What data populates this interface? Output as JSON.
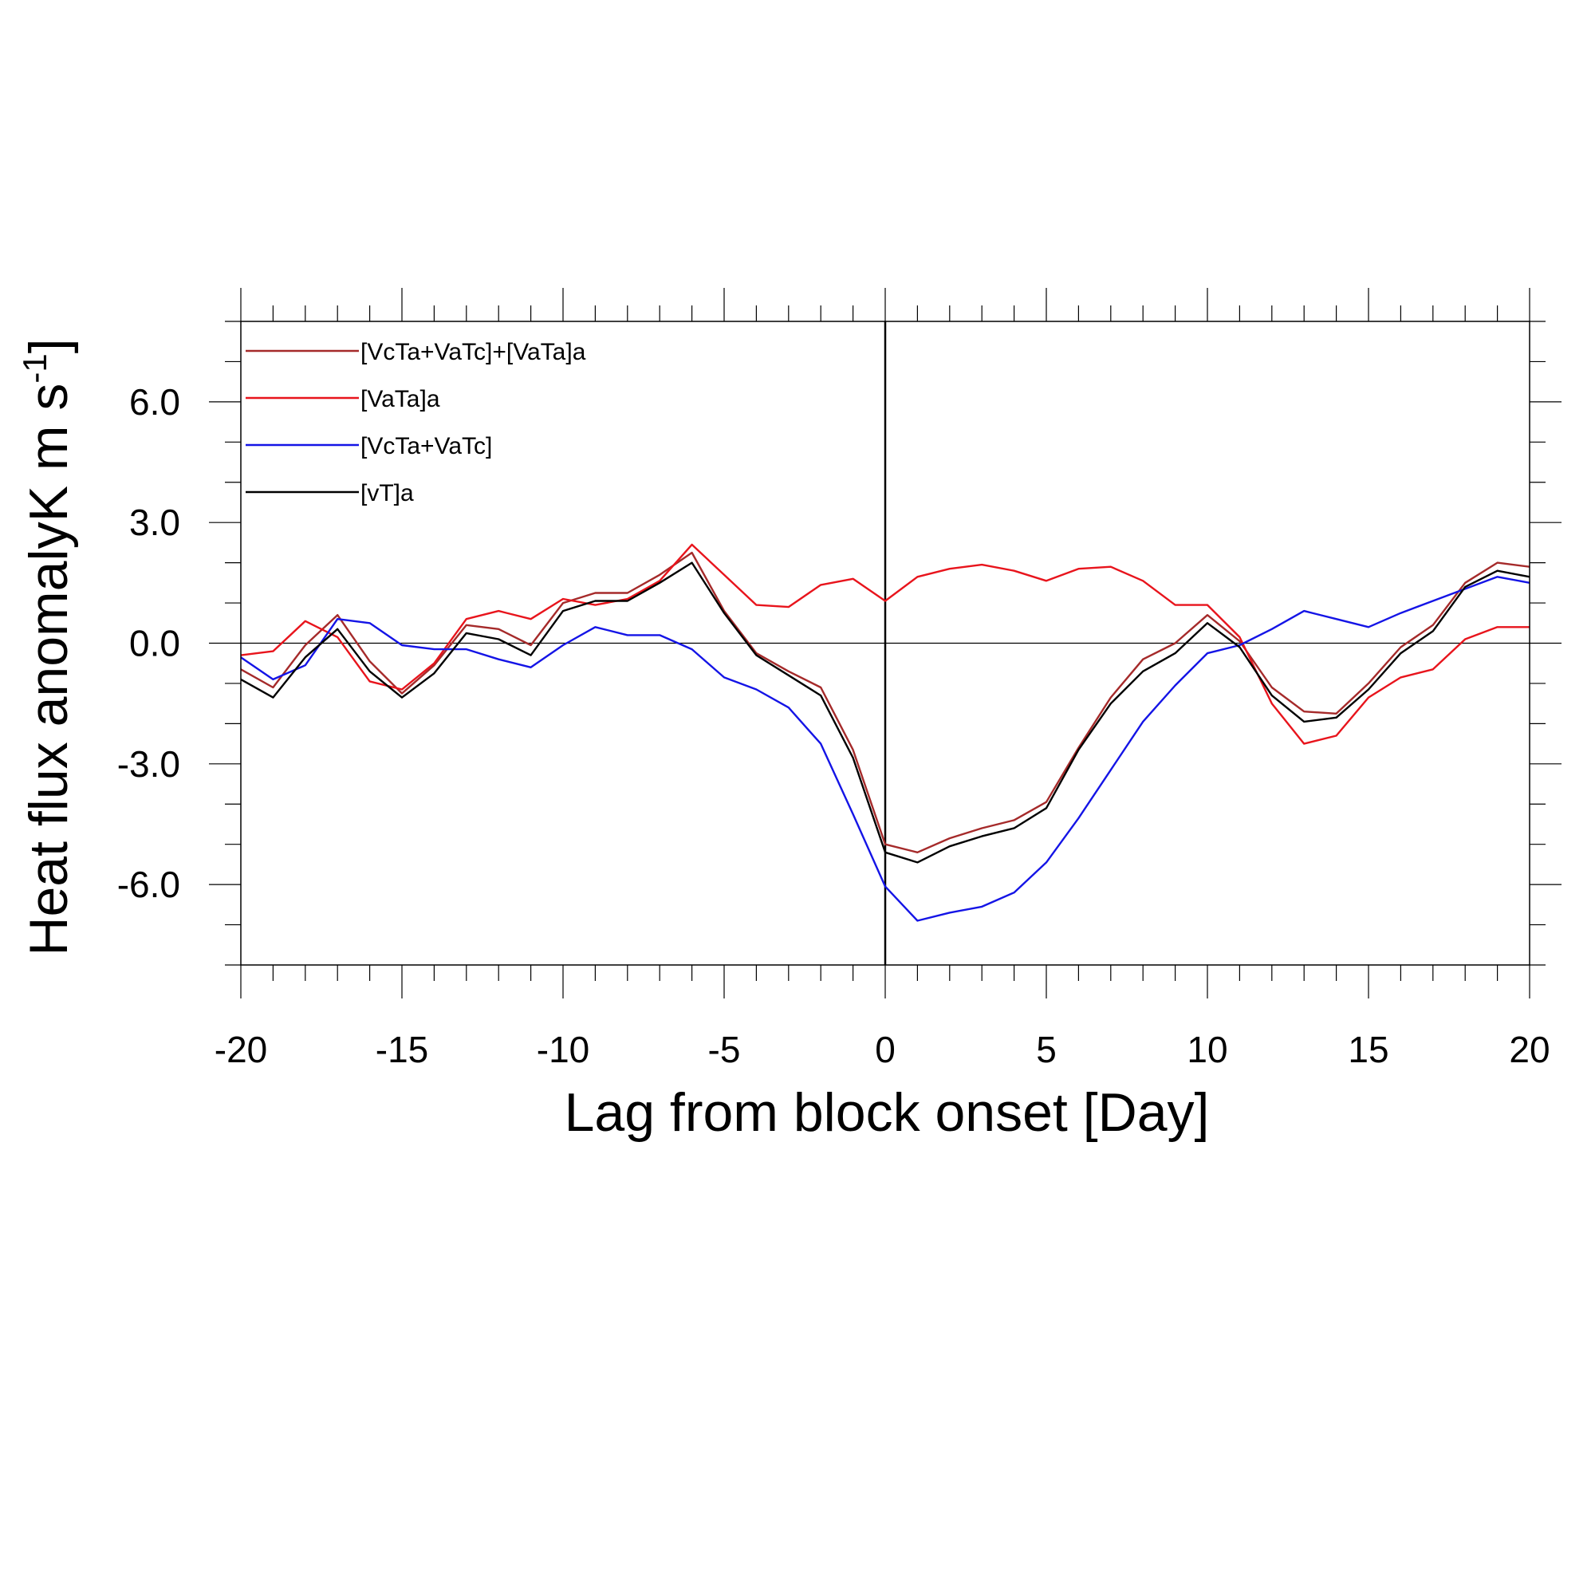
{
  "chart_data": {
    "type": "line",
    "title": "",
    "xlabel": "Lag from block onset [Day]",
    "ylabel": "Heat flux anomalyK m s",
    "ylabel_superscript": "-1",
    "xlim": [
      -20,
      20
    ],
    "ylim": [
      -8,
      8
    ],
    "x_ticks": [
      -20,
      -15,
      -10,
      -5,
      0,
      5,
      10,
      15,
      20
    ],
    "x_tick_labels": [
      "-20",
      "-15",
      "-10",
      "-5",
      "0",
      "5",
      "10",
      "15",
      "20"
    ],
    "y_ticks": [
      -6,
      -3,
      0,
      3,
      6
    ],
    "y_tick_labels": [
      "-6.0",
      "-3.0",
      "0.0",
      "3.0",
      "6.0"
    ],
    "reference_lines": {
      "horizontal_at_y": 0,
      "vertical_at_x": 0
    },
    "grid": false,
    "legend_position": "top-left",
    "x": [
      -20,
      -19,
      -18,
      -17,
      -16,
      -15,
      -14,
      -13,
      -12,
      -11,
      -10,
      -9,
      -8,
      -7,
      -6,
      -5,
      -4,
      -3,
      -2,
      -1,
      0,
      1,
      2,
      3,
      4,
      5,
      6,
      7,
      8,
      9,
      10,
      11,
      12,
      13,
      14,
      15,
      16,
      17,
      18,
      19,
      20
    ],
    "series": [
      {
        "name": "[VcTa+VaTc]+[VaTa]a",
        "color": "#a52a2a",
        "values": [
          -0.65,
          -1.1,
          -0.05,
          0.7,
          -0.45,
          -1.25,
          -0.55,
          0.45,
          0.35,
          -0.05,
          1.0,
          1.25,
          1.25,
          1.7,
          2.25,
          0.8,
          -0.25,
          -0.7,
          -1.1,
          -2.65,
          -5.0,
          -5.2,
          -4.85,
          -4.6,
          -4.4,
          -3.95,
          -2.6,
          -1.35,
          -0.4,
          0.0,
          0.7,
          0.05,
          -1.1,
          -1.7,
          -1.75,
          -1.0,
          -0.1,
          0.45,
          1.5,
          2.0,
          1.9
        ]
      },
      {
        "name": "[VaTa]a",
        "color": "#e8141c",
        "values": [
          -0.3,
          -0.2,
          0.55,
          0.15,
          -0.95,
          -1.15,
          -0.5,
          0.6,
          0.8,
          0.6,
          1.1,
          0.95,
          1.1,
          1.55,
          2.45,
          1.7,
          0.95,
          0.9,
          1.45,
          1.6,
          1.05,
          1.65,
          1.85,
          1.95,
          1.8,
          1.55,
          1.85,
          1.9,
          1.55,
          0.95,
          0.95,
          0.15,
          -1.5,
          -2.5,
          -2.3,
          -1.35,
          -0.85,
          -0.65,
          0.1,
          0.4,
          0.4
        ]
      },
      {
        "name": "[VcTa+VaTc]",
        "color": "#1414e6",
        "values": [
          -0.35,
          -0.9,
          -0.55,
          0.6,
          0.5,
          -0.05,
          -0.15,
          -0.15,
          -0.4,
          -0.6,
          -0.05,
          0.4,
          0.2,
          0.2,
          -0.15,
          -0.85,
          -1.15,
          -1.6,
          -2.5,
          -4.25,
          -6.05,
          -6.9,
          -6.7,
          -6.55,
          -6.2,
          -5.45,
          -4.35,
          -3.15,
          -1.95,
          -1.05,
          -0.25,
          -0.05,
          0.35,
          0.8,
          0.6,
          0.4,
          0.75,
          1.05,
          1.35,
          1.65,
          1.5
        ]
      },
      {
        "name": "[vT]a",
        "color": "#000000",
        "values": [
          -0.9,
          -1.35,
          -0.35,
          0.35,
          -0.7,
          -1.35,
          -0.75,
          0.25,
          0.1,
          -0.3,
          0.8,
          1.05,
          1.05,
          1.5,
          2.0,
          0.75,
          -0.3,
          -0.8,
          -1.3,
          -2.85,
          -5.2,
          -5.45,
          -5.05,
          -4.8,
          -4.6,
          -4.1,
          -2.65,
          -1.5,
          -0.7,
          -0.25,
          0.5,
          -0.1,
          -1.3,
          -1.95,
          -1.85,
          -1.15,
          -0.25,
          0.3,
          1.4,
          1.8,
          1.65
        ]
      }
    ]
  }
}
